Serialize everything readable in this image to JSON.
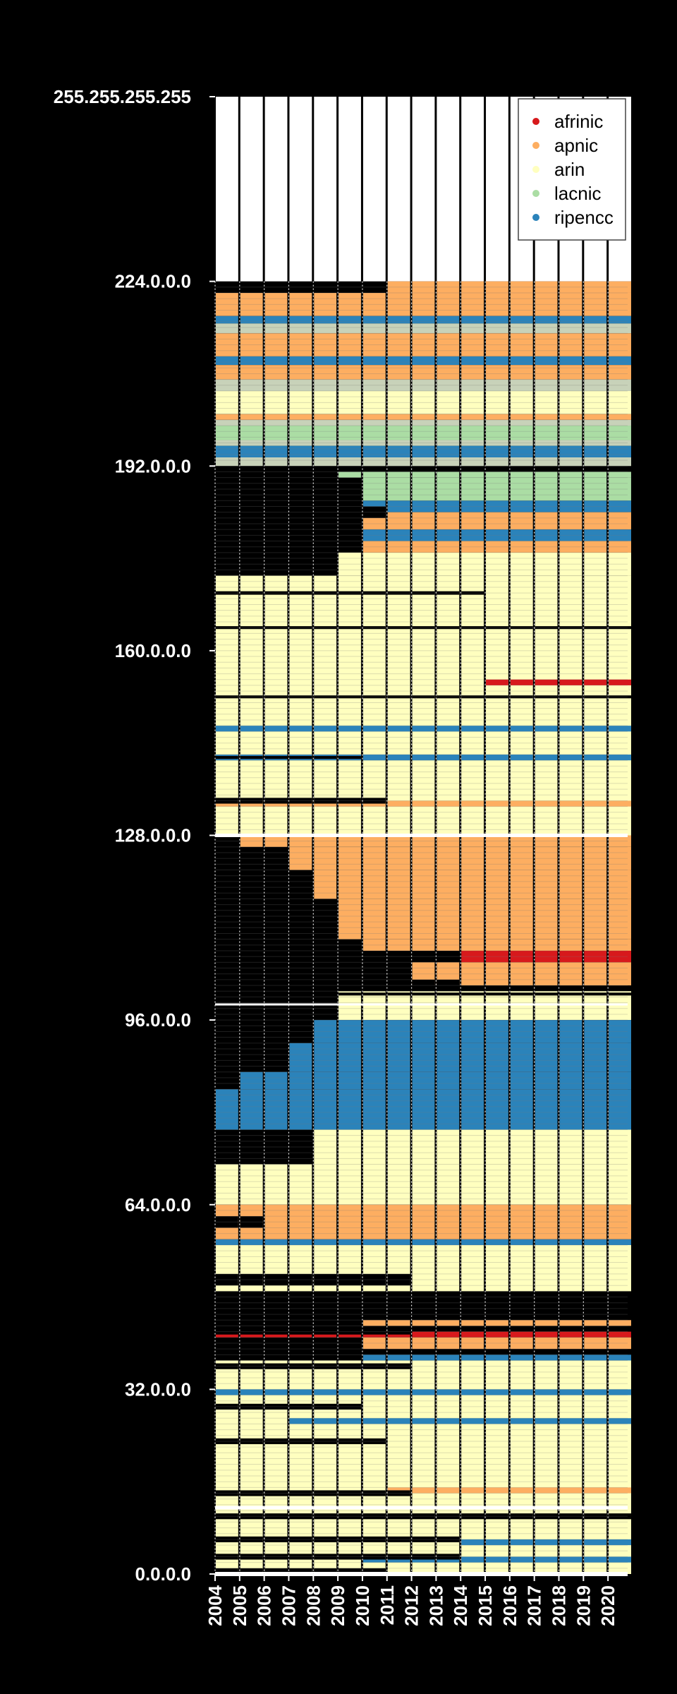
{
  "chart_data": {
    "type": "heatmap",
    "title": "",
    "xlabel": "",
    "ylabel": "",
    "x": [
      "2004",
      "2005",
      "2006",
      "2007",
      "2008",
      "2009",
      "2010",
      "2011",
      "2012",
      "2013",
      "2014",
      "2015",
      "2016",
      "2017",
      "2018",
      "2019",
      "2020"
    ],
    "xlim": [
      2004,
      2020.8
    ],
    "y_ticks": [
      {
        "label": "255.255.255.255",
        "value": 256
      },
      {
        "label": "224.0.0.0",
        "value": 224
      },
      {
        "label": "192.0.0.0",
        "value": 192
      },
      {
        "label": "160.0.0.0",
        "value": 160
      },
      {
        "label": "128.0.0.0",
        "value": 128
      },
      {
        "label": "96.0.0.0",
        "value": 96
      },
      {
        "label": "64.0.0.0",
        "value": 64
      },
      {
        "label": "32.0.0.0",
        "value": 32
      },
      {
        "label": "0.0.0.0",
        "value": 0
      }
    ],
    "ylim": [
      0,
      256
    ],
    "y_unit": "/8 blocks",
    "grid": true,
    "legend_position": "top-right",
    "colors": {
      "afrinic": "#d7191c",
      "apnic": "#fdae61",
      "arin": "#ffffbf",
      "lacnic": "#abdda4",
      "ripencc": "#2b83ba",
      "unallocated": "#000000",
      "reserved": "#ffffff",
      "mixed": "#c8d2b9"
    },
    "series": [
      {
        "name": "afrinic"
      },
      {
        "name": "apnic"
      },
      {
        "name": "arin"
      },
      {
        "name": "lacnic"
      },
      {
        "name": "ripencc"
      }
    ],
    "bands": [
      {
        "from": 224,
        "to": 256,
        "reg": "reserved",
        "start": 2004
      },
      {
        "from": 222,
        "to": 224,
        "reg": "apnic",
        "start": 2011
      },
      {
        "from": 218,
        "to": 222,
        "reg": "apnic",
        "start": 2004
      },
      {
        "from": 216.7,
        "to": 218,
        "reg": "ripencc",
        "start": 2004
      },
      {
        "from": 215,
        "to": 216.7,
        "reg": "mixed",
        "start": 2004
      },
      {
        "from": 211,
        "to": 215,
        "reg": "apnic",
        "start": 2004
      },
      {
        "from": 209.5,
        "to": 211,
        "reg": "ripencc",
        "start": 2004
      },
      {
        "from": 207,
        "to": 209.5,
        "reg": "apnic",
        "start": 2004
      },
      {
        "from": 205,
        "to": 207,
        "reg": "mixed",
        "start": 2004
      },
      {
        "from": 201,
        "to": 205,
        "reg": "arin",
        "start": 2004
      },
      {
        "from": 200,
        "to": 201,
        "reg": "apnic",
        "start": 2004
      },
      {
        "from": 199,
        "to": 200,
        "reg": "mixed",
        "start": 2004
      },
      {
        "from": 196.5,
        "to": 199,
        "reg": "lacnic",
        "start": 2004
      },
      {
        "from": 195.5,
        "to": 196.5,
        "reg": "mixed",
        "start": 2004
      },
      {
        "from": 193.5,
        "to": 195.5,
        "reg": "ripencc",
        "start": 2004
      },
      {
        "from": 192,
        "to": 193.5,
        "reg": "mixed",
        "start": 2004
      },
      {
        "from": 190,
        "to": 191,
        "reg": "lacnic",
        "start": 2009
      },
      {
        "from": 186,
        "to": 190,
        "reg": "lacnic",
        "start": 2010
      },
      {
        "from": 184,
        "to": 186,
        "reg": "ripencc",
        "start": 2010
      },
      {
        "from": 181,
        "to": 184,
        "reg": "apnic",
        "start": 2010
      },
      {
        "from": 179,
        "to": 181,
        "reg": "ripencc",
        "start": 2010
      },
      {
        "from": 177,
        "to": 179,
        "reg": "apnic",
        "start": 2010
      },
      {
        "from": 173,
        "to": 177,
        "reg": "arin",
        "start": 2009
      },
      {
        "from": 128,
        "to": 173,
        "reg": "arin",
        "start": 2004
      },
      {
        "from": 154,
        "to": 155,
        "reg": "afrinic",
        "start": 2015
      },
      {
        "from": 146,
        "to": 147,
        "reg": "ripencc",
        "start": 2004
      },
      {
        "from": 141,
        "to": 142,
        "reg": "ripencc",
        "start": 2004
      },
      {
        "from": 133,
        "to": 134,
        "reg": "apnic",
        "start": 2004
      },
      {
        "from": 126,
        "to": 128,
        "reg": "apnic",
        "start": 2005
      },
      {
        "from": 122,
        "to": 126,
        "reg": "apnic",
        "start": 2007
      },
      {
        "from": 117,
        "to": 122,
        "reg": "apnic",
        "start": 2008
      },
      {
        "from": 110,
        "to": 117,
        "reg": "apnic",
        "start": 2009
      },
      {
        "from": 108,
        "to": 110,
        "reg": "apnic",
        "start": 2010
      },
      {
        "from": 106,
        "to": 108,
        "reg": "afrinic",
        "start": 2014
      },
      {
        "from": 102,
        "to": 106,
        "reg": "apnic",
        "start": 2012
      },
      {
        "from": 100,
        "to": 101,
        "reg": "arin",
        "start": 2009
      },
      {
        "from": 96,
        "to": 100,
        "reg": "arin",
        "start": 2009
      },
      {
        "from": 92,
        "to": 96,
        "reg": "ripencc",
        "start": 2008
      },
      {
        "from": 87,
        "to": 92,
        "reg": "ripencc",
        "start": 2006.5
      },
      {
        "from": 84,
        "to": 87,
        "reg": "ripencc",
        "start": 2005
      },
      {
        "from": 77,
        "to": 84,
        "reg": "ripencc",
        "start": 2004
      },
      {
        "from": 71,
        "to": 77,
        "reg": "arin",
        "start": 2008
      },
      {
        "from": 64,
        "to": 71,
        "reg": "arin",
        "start": 2004
      },
      {
        "from": 58,
        "to": 64,
        "reg": "apnic",
        "start": 2004
      },
      {
        "from": 57,
        "to": 58,
        "reg": "ripencc",
        "start": 2004
      },
      {
        "from": 49,
        "to": 57,
        "reg": "arin",
        "start": 2004
      },
      {
        "from": 43,
        "to": 44,
        "reg": "apnic",
        "start": 2010
      },
      {
        "from": 41,
        "to": 42,
        "reg": "afrinic",
        "start": 2004
      },
      {
        "from": 39,
        "to": 41,
        "reg": "apnic",
        "start": 2010
      },
      {
        "from": 37,
        "to": 38,
        "reg": "ripencc",
        "start": 2010
      },
      {
        "from": 0,
        "to": 37,
        "reg": "arin",
        "start": 2004
      },
      {
        "from": 31,
        "to": 32,
        "reg": "ripencc",
        "start": 2004
      },
      {
        "from": 26,
        "to": 27,
        "reg": "ripencc",
        "start": 2007
      },
      {
        "from": 14,
        "to": 15,
        "reg": "apnic",
        "start": 2011
      },
      {
        "from": 5,
        "to": 6,
        "reg": "ripencc",
        "start": 2014
      },
      {
        "from": 2,
        "to": 3,
        "reg": "ripencc",
        "start": 2010
      }
    ],
    "gaps": [
      {
        "at": 191.5,
        "h": 1,
        "until": 2009
      },
      {
        "at": 184,
        "h": 2,
        "until": 2010
      },
      {
        "at": 170,
        "h": 0.6,
        "until": 2014
      },
      {
        "at": 164,
        "h": 0.5,
        "until": 2020.8
      },
      {
        "at": 152,
        "h": 0.5,
        "until": 2020.8
      },
      {
        "at": 141.5,
        "h": 0.5,
        "until": 2009
      },
      {
        "at": 134,
        "h": 1,
        "until": 2010
      },
      {
        "at": 102,
        "h": 2,
        "until": 2013
      },
      {
        "at": 100.5,
        "h": 0.5,
        "until": 2020.8
      },
      {
        "at": 61,
        "h": 2,
        "until": 2005
      },
      {
        "at": 51,
        "h": 2,
        "until": 2011
      },
      {
        "at": 46,
        "h": 1,
        "until": 2011
      },
      {
        "at": 42,
        "h": 1,
        "until": 2011
      },
      {
        "at": 36,
        "h": 1,
        "until": 2011
      },
      {
        "at": 29,
        "h": 1,
        "until": 2009
      },
      {
        "at": 23,
        "h": 1,
        "until": 2010
      },
      {
        "at": 14,
        "h": 1,
        "until": 2011
      },
      {
        "at": 10,
        "h": 1,
        "until": 2020.8
      },
      {
        "at": 6,
        "h": 1,
        "until": 2013
      },
      {
        "at": 3,
        "h": 1,
        "until": 2013
      },
      {
        "at": 0.5,
        "h": 1,
        "until": 2010
      }
    ]
  }
}
